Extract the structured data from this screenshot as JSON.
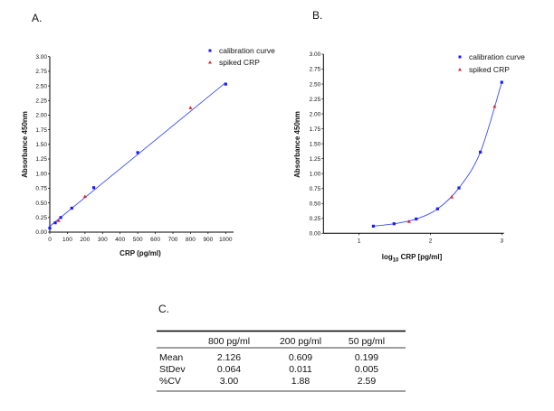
{
  "panels": {
    "a": "A.",
    "b": "B.",
    "c": "C."
  },
  "colors": {
    "calibration": "#1a1aff",
    "spiked": "#e8202a",
    "fit": "#3a4dff"
  },
  "chart_data": [
    {
      "type": "scatter",
      "panel": "A.",
      "xlabel": "CRP (pg/ml)",
      "ylabel": "Absorbance 450nm",
      "xlim": [
        0,
        1000
      ],
      "ylim": [
        0,
        3
      ],
      "xticks": [
        "0",
        "100",
        "200",
        "300",
        "400",
        "500",
        "600",
        "700",
        "800",
        "900",
        "1000"
      ],
      "yticks": [
        "0.00",
        "0.25",
        "0.50",
        "0.75",
        "1.00",
        "1.25",
        "1.50",
        "1.75",
        "2.00",
        "2.25",
        "2.50",
        "2.75",
        "3.00"
      ],
      "fit": "linear",
      "legend_position": "top-right",
      "series": [
        {
          "name": "calibration curve",
          "marker": "square",
          "x": [
            0,
            31.25,
            62.5,
            125,
            250,
            500,
            1000
          ],
          "y": [
            0.07,
            0.16,
            0.25,
            0.41,
            0.76,
            1.36,
            2.53
          ]
        },
        {
          "name": "spiked CRP",
          "marker": "triangle",
          "x": [
            50,
            200,
            800
          ],
          "y": [
            0.199,
            0.609,
            2.126
          ]
        }
      ]
    },
    {
      "type": "scatter",
      "panel": "B.",
      "xlabel_main": "log",
      "xlabel_sub": "10",
      "xlabel_rest": " CRP [pg/ml]",
      "ylabel": "Absorbance 450nm",
      "xlim": [
        0.5,
        3.05
      ],
      "ylim": [
        0,
        3
      ],
      "xticks": [
        "1",
        "2",
        "3"
      ],
      "yticks": [
        "0.00",
        "0.25",
        "0.50",
        "0.75",
        "1.00",
        "1.25",
        "1.50",
        "1.75",
        "2.00",
        "2.25",
        "2.50",
        "2.75",
        "3.00"
      ],
      "fit": "curve",
      "legend_position": "top-right",
      "series": [
        {
          "name": "calibration curve",
          "marker": "square",
          "x": [
            1.2,
            1.49,
            1.8,
            2.1,
            2.4,
            2.7,
            3.0
          ],
          "y": [
            0.12,
            0.16,
            0.24,
            0.41,
            0.76,
            1.36,
            2.53
          ]
        },
        {
          "name": "spiked CRP",
          "marker": "triangle",
          "x": [
            1.7,
            2.3,
            2.9
          ],
          "y": [
            0.199,
            0.609,
            2.126
          ]
        }
      ]
    },
    {
      "type": "table",
      "panel": "C.",
      "columns": [
        "",
        "800 pg/ml",
        "200 pg/ml",
        "50 pg/ml"
      ],
      "rows": [
        [
          "Mean",
          "2.126",
          "0.609",
          "0.199"
        ],
        [
          "StDev",
          "0.064",
          "0.011",
          "0.005"
        ],
        [
          "%CV",
          "3.00",
          "1.88",
          "2.59"
        ]
      ]
    }
  ]
}
